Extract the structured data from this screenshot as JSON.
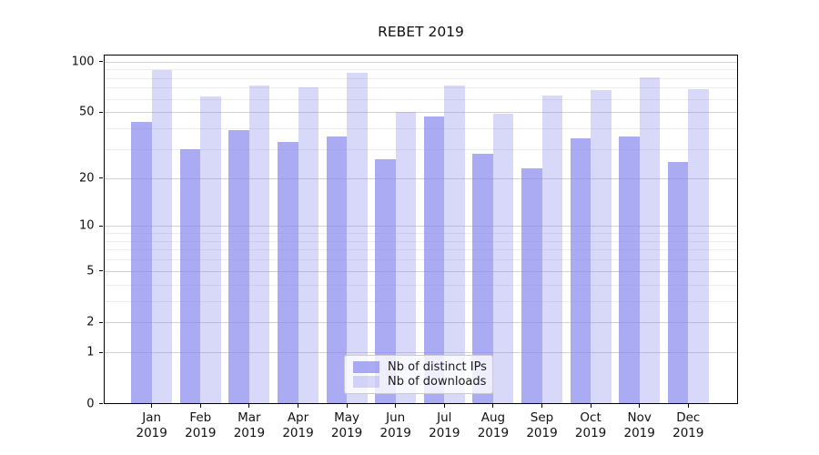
{
  "chart_data": {
    "type": "bar",
    "title": "REBET 2019",
    "categories": [
      "Jan 2019",
      "Feb 2019",
      "Mar 2019",
      "Apr 2019",
      "May 2019",
      "Jun 2019",
      "Jul 2019",
      "Aug 2019",
      "Sep 2019",
      "Oct 2019",
      "Nov 2019",
      "Dec 2019"
    ],
    "series": [
      {
        "name": "Nb of distinct IPs",
        "color": "rgba(136,136,238,0.7)",
        "values": [
          44,
          30,
          39,
          33,
          36,
          26,
          47,
          28,
          23,
          35,
          36,
          25
        ]
      },
      {
        "name": "Nb of downloads",
        "color": "rgba(136,136,238,0.33)",
        "values": [
          89,
          62,
          72,
          70,
          86,
          50,
          72,
          49,
          63,
          68,
          81,
          69
        ]
      }
    ],
    "xlabel": "",
    "ylabel": "",
    "yscale": "log1p",
    "ylim": [
      0,
      110
    ],
    "y_major_ticks": [
      100,
      50,
      20,
      10,
      5,
      2,
      1,
      0
    ],
    "y_major_tick_labels": [
      "100",
      "50",
      "20",
      "10",
      "5",
      "2",
      "1",
      "0"
    ],
    "y_minor_gridlines": [
      90,
      80,
      70,
      60,
      40,
      30,
      9,
      8,
      7,
      6,
      4,
      3
    ],
    "grid": true,
    "legend_position": "lower center"
  },
  "legend": {
    "items": [
      {
        "label": "Nb of distinct IPs"
      },
      {
        "label": "Nb of downloads"
      }
    ]
  }
}
